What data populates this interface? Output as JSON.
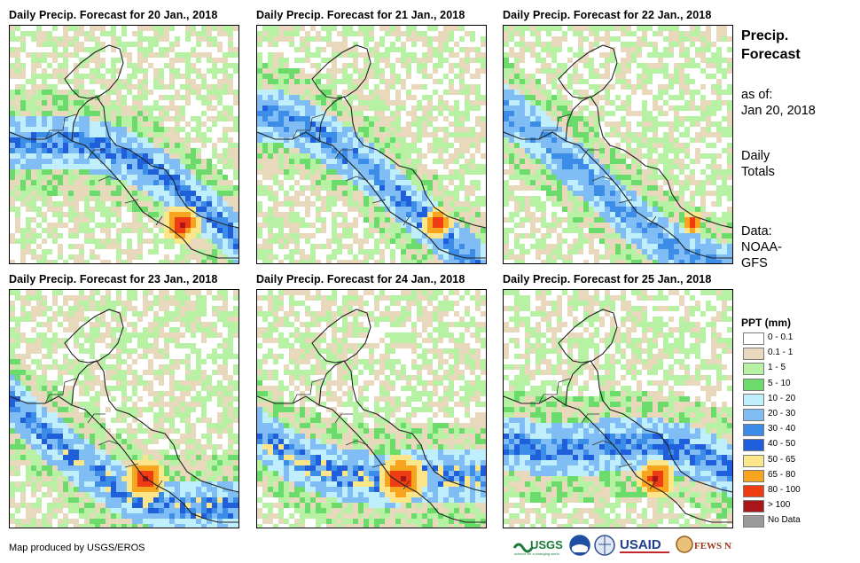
{
  "panels": [
    {
      "title": "Daily Precip. Forecast for 20 Jan., 2018",
      "intensity": 1.0,
      "seed": 11
    },
    {
      "title": "Daily Precip. Forecast for 21 Jan., 2018",
      "intensity": 0.75,
      "seed": 23
    },
    {
      "title": "Daily Precip. Forecast for 22 Jan., 2018",
      "intensity": 0.55,
      "seed": 37
    },
    {
      "title": "Daily Precip. Forecast for 23 Jan., 2018",
      "intensity": 1.1,
      "seed": 41
    },
    {
      "title": "Daily Precip. Forecast for 24 Jan., 2018",
      "intensity": 1.25,
      "seed": 53
    },
    {
      "title": "Daily Precip. Forecast for 25 Jan., 2018",
      "intensity": 1.0,
      "seed": 67
    }
  ],
  "side": {
    "title_line1": "Precip.",
    "title_line2": "Forecast",
    "asof_label": "as of:",
    "asof_date": "Jan 20, 2018",
    "totals_line1": "Daily",
    "totals_line2": "Totals",
    "source_line1": "Data:",
    "source_line2": "NOAA-",
    "source_line3": "GFS"
  },
  "legend": {
    "title": "PPT (mm)",
    "items": [
      {
        "label": "0 - 0.1",
        "color": "#ffffff"
      },
      {
        "label": "0.1 - 1",
        "color": "#e8d9bd"
      },
      {
        "label": "1 - 5",
        "color": "#b7f2a4"
      },
      {
        "label": "5 - 10",
        "color": "#6bdc6b"
      },
      {
        "label": "10 - 20",
        "color": "#bfeffc"
      },
      {
        "label": "20 - 30",
        "color": "#7fbdf4"
      },
      {
        "label": "30 - 40",
        "color": "#3c8de8"
      },
      {
        "label": "40 - 50",
        "color": "#1f5fdc"
      },
      {
        "label": "50 - 65",
        "color": "#fde68a"
      },
      {
        "label": "65 - 80",
        "color": "#f7a51f"
      },
      {
        "label": "80 - 100",
        "color": "#f03c12"
      },
      {
        "label": "> 100",
        "color": "#a8161a"
      },
      {
        "label": "No Data",
        "color": "#9a9a9a"
      }
    ]
  },
  "footer": {
    "credit": "Map produced by USGS/EROS",
    "logos": {
      "usgs": "USGS",
      "usaid": "USAID",
      "fewsnet": "FEWS NET"
    }
  }
}
